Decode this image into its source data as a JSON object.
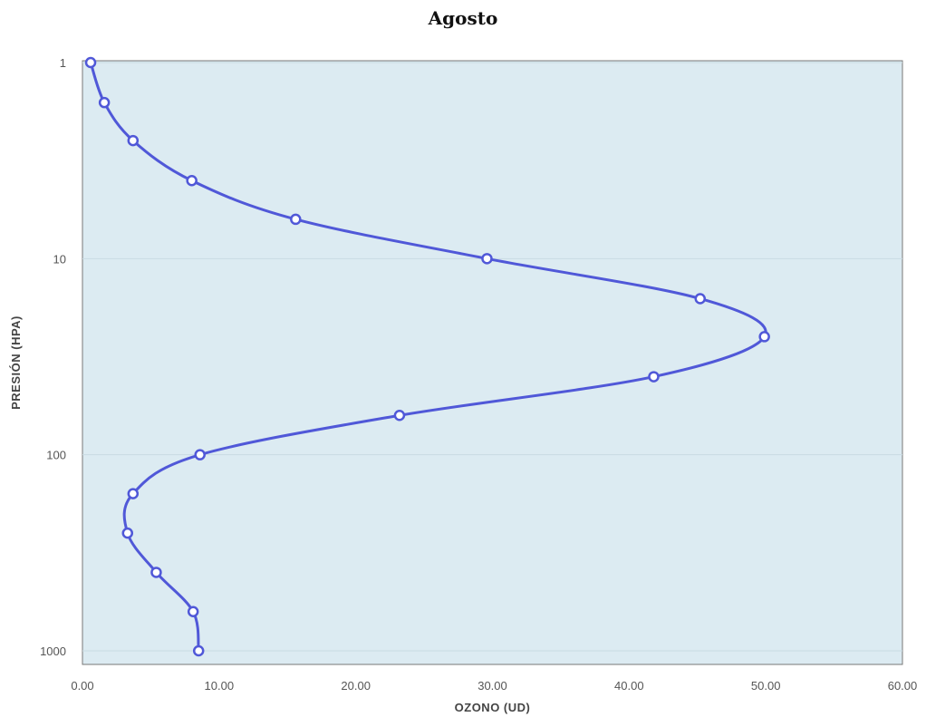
{
  "chart_data": {
    "type": "line",
    "title": "Agosto",
    "xlabel": "OZONO (UD)",
    "ylabel": "PRESIÓN (HPA)",
    "xlim": [
      0,
      60
    ],
    "ylim": [
      1,
      1000
    ],
    "y_scale": "log",
    "y_inverted": true,
    "x_ticks": [
      "0.00",
      "10.00",
      "20.00",
      "30.00",
      "40.00",
      "50.00",
      "60.00"
    ],
    "y_ticks": [
      "1",
      "10",
      "100",
      "1000"
    ],
    "grid": "horizontal",
    "background": "#dcebf2",
    "line_color": "#5058d8",
    "series": [
      {
        "x": [
          0.6,
          1.6,
          3.7,
          8.0,
          15.6,
          29.6,
          45.2,
          49.9,
          41.8,
          23.2,
          8.6,
          3.7,
          3.3,
          5.4,
          8.1,
          8.5
        ],
        "y": [
          1,
          1.6,
          2.5,
          4,
          6.3,
          10,
          16,
          25,
          40,
          63,
          100,
          158,
          251,
          398,
          631,
          1000
        ]
      }
    ]
  }
}
